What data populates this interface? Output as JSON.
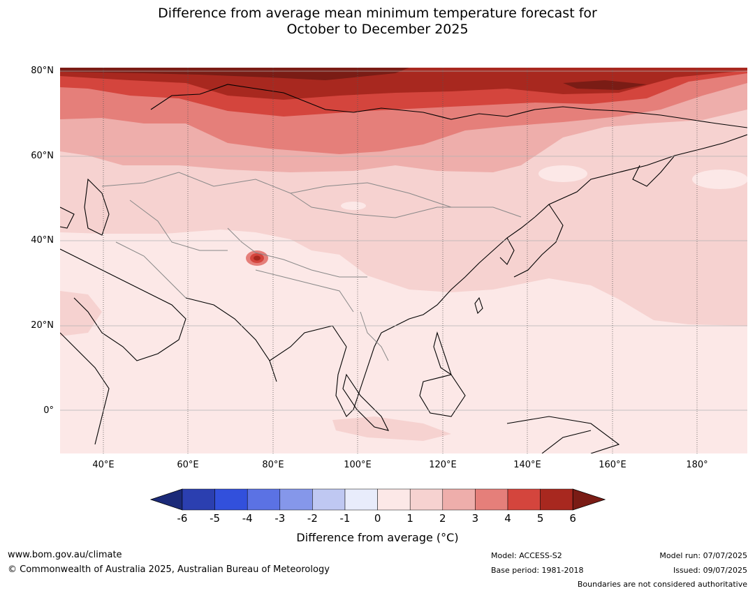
{
  "title_line1": "Difference from average mean minimum temperature forecast for",
  "title_line2": "October to December 2025",
  "lat_labels": [
    "80°N",
    "60°N",
    "40°N",
    "20°N",
    "0°"
  ],
  "lon_labels": [
    "40°E",
    "60°E",
    "80°E",
    "100°E",
    "120°E",
    "140°E",
    "160°E",
    "180°"
  ],
  "colorbar": {
    "label": "Difference from average (°C)",
    "ticks": [
      "-6",
      "-5",
      "-4",
      "-3",
      "-2",
      "-1",
      "0",
      "1",
      "2",
      "3",
      "4",
      "5",
      "6"
    ],
    "colors": [
      "#1b2a78",
      "#2b3fb0",
      "#3250dc",
      "#5b72e4",
      "#8597ea",
      "#bfc8f2",
      "#e8ecfb",
      "#fce8e7",
      "#f6d2d0",
      "#eeaeab",
      "#e57f7a",
      "#d4453d",
      "#a8281f",
      "#7a1c15"
    ]
  },
  "footer": {
    "url": "www.bom.gov.au/climate",
    "copyright": "© Commonwealth of Australia 2025, Australian Bureau of Meteorology",
    "model": "Model: ACCESS-S2",
    "base_period": "Base period: 1981-2018",
    "model_run": "Model run: 07/07/2025",
    "issued": "Issued: 09/07/2025",
    "disclaimer": "Boundaries are not considered authoritative"
  }
}
